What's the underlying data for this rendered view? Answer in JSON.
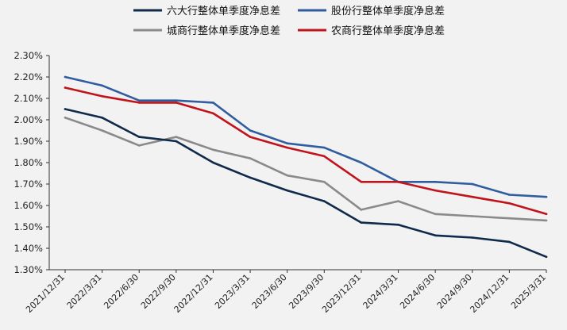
{
  "chart_data": {
    "type": "line",
    "title": "",
    "xlabel": "",
    "ylabel": "",
    "ylim": [
      1.3,
      2.3
    ],
    "y_ticks": [
      "1.30%",
      "1.40%",
      "1.50%",
      "1.60%",
      "1.70%",
      "1.80%",
      "1.90%",
      "2.00%",
      "2.10%",
      "2.20%",
      "2.30%"
    ],
    "grid": false,
    "legend_position": "top",
    "categories": [
      "2021/12/31",
      "2022/3/31",
      "2022/6/30",
      "2022/9/30",
      "2022/12/31",
      "2023/3/31",
      "2023/6/30",
      "2023/9/30",
      "2023/12/31",
      "2024/3/31",
      "2024/6/30",
      "2024/9/30",
      "2024/12/31",
      "2025/3/31"
    ],
    "series": [
      {
        "name": "六大行整体单季度净息差",
        "color": "#0f2a4a",
        "values": [
          2.05,
          2.01,
          1.92,
          1.9,
          1.8,
          1.73,
          1.67,
          1.62,
          1.52,
          1.51,
          1.46,
          1.45,
          1.43,
          1.36
        ]
      },
      {
        "name": "股份行整体单季度净息差",
        "color": "#2f5d9e",
        "values": [
          2.2,
          2.16,
          2.09,
          2.09,
          2.08,
          1.95,
          1.89,
          1.87,
          1.8,
          1.71,
          1.71,
          1.7,
          1.65,
          1.64
        ]
      },
      {
        "name": "城商行整体单季度净息差",
        "color": "#8a8a8a",
        "values": [
          2.01,
          1.95,
          1.88,
          1.92,
          1.86,
          1.82,
          1.74,
          1.71,
          1.58,
          1.62,
          1.56,
          1.55,
          1.54,
          1.53
        ]
      },
      {
        "name": "农商行整体单季度净息差",
        "color": "#c0141c",
        "values": [
          2.15,
          2.11,
          2.08,
          2.08,
          2.03,
          1.92,
          1.87,
          1.83,
          1.71,
          1.71,
          1.67,
          1.64,
          1.61,
          1.56
        ]
      }
    ]
  }
}
